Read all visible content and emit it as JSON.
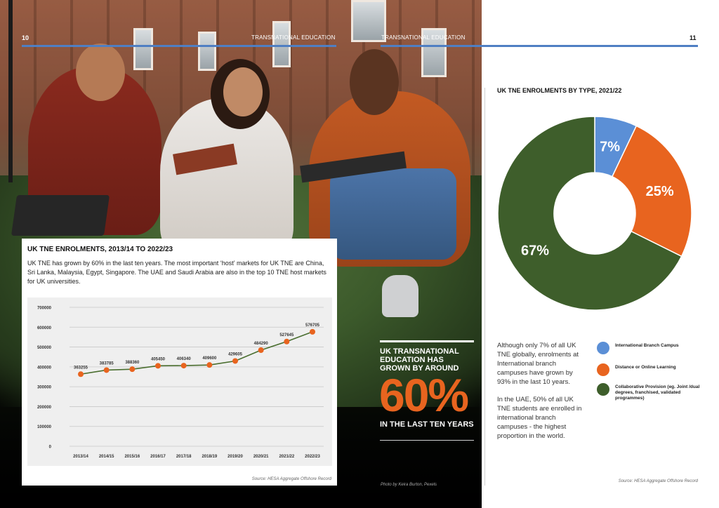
{
  "header": {
    "left_page_number": "10",
    "right_page_number": "11",
    "left_running_title": "TRANSNATIONAL EDUCATION",
    "right_running_title": "TRANSNATIONAL EDUCATION"
  },
  "colors": {
    "accent_blue": "#4f7fc3",
    "orange": "#e8641f",
    "green": "#3e5e2b",
    "blue_slice": "#5b8fd6"
  },
  "enrolments_card": {
    "title": "UK TNE ENROLMENTS, 2013/14 TO 2022/23",
    "body": "UK TNE has grown by 60% in the last ten years. The most important ‘host’ markets for UK TNE are China, Sri Lanka, Malaysia, Egypt, Singapore. The UAE and Saudi Arabia are also in the top 10 TNE host markets for UK universities.",
    "source": "Source: HESA Aggregate Offshore Record"
  },
  "callout": {
    "heading": "UK TRANSNATIONAL EDUCATION HAS GROWN BY AROUND",
    "big_number": "60%",
    "footer": "IN THE LAST TEN YEARS",
    "photo_credit": "Photo by Keira Burton, Pexels"
  },
  "right_page": {
    "title": "UK TNE ENROLMENTS BY TYPE, 2021/22",
    "paragraph_1": "Although only 7% of all UK TNE globally, enrolments at International branch campuses have grown by 93% in the last 10 years.",
    "paragraph_2": "In the UAE, 50% of all UK TNE students are enrolled in international branch campuses - the highest proportion in the world.",
    "source": "Source: HESA Aggregate Offshore Record",
    "legend": [
      {
        "label": "International Branch Campus",
        "color": "#5b8fd6"
      },
      {
        "label": "Distance or Online Learning",
        "color": "#e8641f"
      },
      {
        "label": "Collaborative Provision (eg. Joint /dual degrees, franchised, validated programmes)",
        "color": "#3e5e2b"
      }
    ]
  },
  "chart_data": [
    {
      "type": "line",
      "title": "UK TNE ENROLMENTS, 2013/14 TO 2022/23",
      "categories": [
        "2013/14",
        "2014/15",
        "2015/16",
        "2016/17",
        "2017/18",
        "2018/19",
        "2019/20",
        "2020/21",
        "2021/22",
        "2022/23"
      ],
      "values": [
        363255,
        383785,
        388360,
        405450,
        406340,
        409600,
        429605,
        484290,
        527645,
        576705
      ],
      "value_labels": [
        "363255",
        "383785",
        "388360",
        "405450",
        "406340",
        "409600",
        "429605",
        "484290",
        "527645",
        "576705"
      ],
      "yticks": [
        "0",
        "100000",
        "200000",
        "300000",
        "400000",
        "500000",
        "600000",
        "700000"
      ],
      "ylim": [
        0,
        700000
      ],
      "xlabel": "",
      "ylabel": "",
      "grid": true,
      "line_color": "#4a6e2f",
      "marker_color": "#e8641f"
    },
    {
      "type": "pie",
      "title": "UK TNE ENROLMENTS BY TYPE, 2021/22",
      "categories": [
        "International Branch Campus",
        "Distance or Online Learning",
        "Collaborative Provision"
      ],
      "values": [
        7,
        25,
        67
      ],
      "value_labels": [
        "7%",
        "25%",
        "67%"
      ],
      "colors": [
        "#5b8fd6",
        "#e8641f",
        "#3e5e2b"
      ],
      "donut": true
    }
  ]
}
